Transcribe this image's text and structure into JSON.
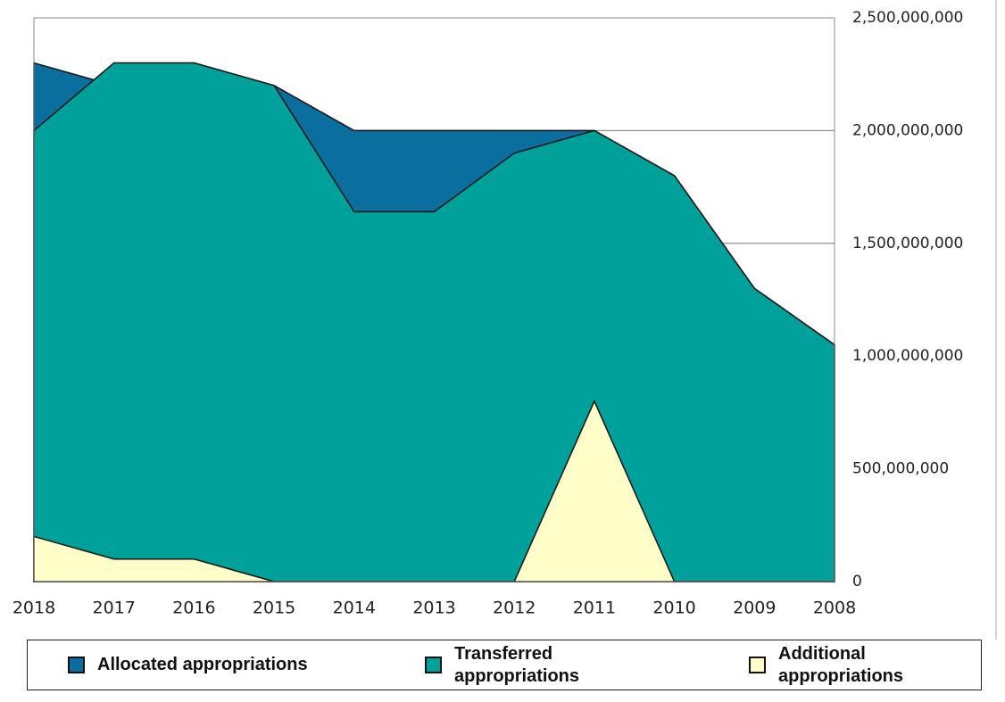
{
  "chart_data": {
    "type": "area",
    "categories": [
      "2018",
      "2017",
      "2016",
      "2015",
      "2014",
      "2013",
      "2012",
      "2011",
      "2010",
      "2009",
      "2008"
    ],
    "series": [
      {
        "name": "Allocated appropriations",
        "color": "#0a6e9e",
        "values": [
          2300000000,
          2200000000,
          2300000000,
          2200000000,
          2000000000,
          2000000000,
          2000000000,
          2000000000,
          1800000000,
          1300000000,
          1050000000
        ]
      },
      {
        "name": "Transferred appropriations",
        "color": "#00a19a",
        "values": [
          2000000000,
          2300000000,
          2300000000,
          2200000000,
          1640000000,
          1640000000,
          1900000000,
          2000000000,
          1800000000,
          1300000000,
          1050000000
        ]
      },
      {
        "name": "Additional appropriations",
        "color": "#fffdc8",
        "values": [
          200000000,
          100000000,
          100000000,
          0,
          0,
          0,
          0,
          800000000,
          0,
          0,
          0
        ]
      }
    ],
    "ylim": [
      0,
      2500000000
    ],
    "yticks": [
      0,
      {
        "value": 500000000,
        "label": "500,000,000"
      },
      {
        "value": 1000000000,
        "label": "1,000,000,000"
      },
      {
        "value": 1500000000,
        "label": "1,500,000,000"
      },
      {
        "value": 2000000000,
        "label": "2,000,000,000"
      },
      {
        "value": 2500000000,
        "label": "2,500,000,000"
      }
    ],
    "grid": true,
    "legend": "bottom"
  }
}
